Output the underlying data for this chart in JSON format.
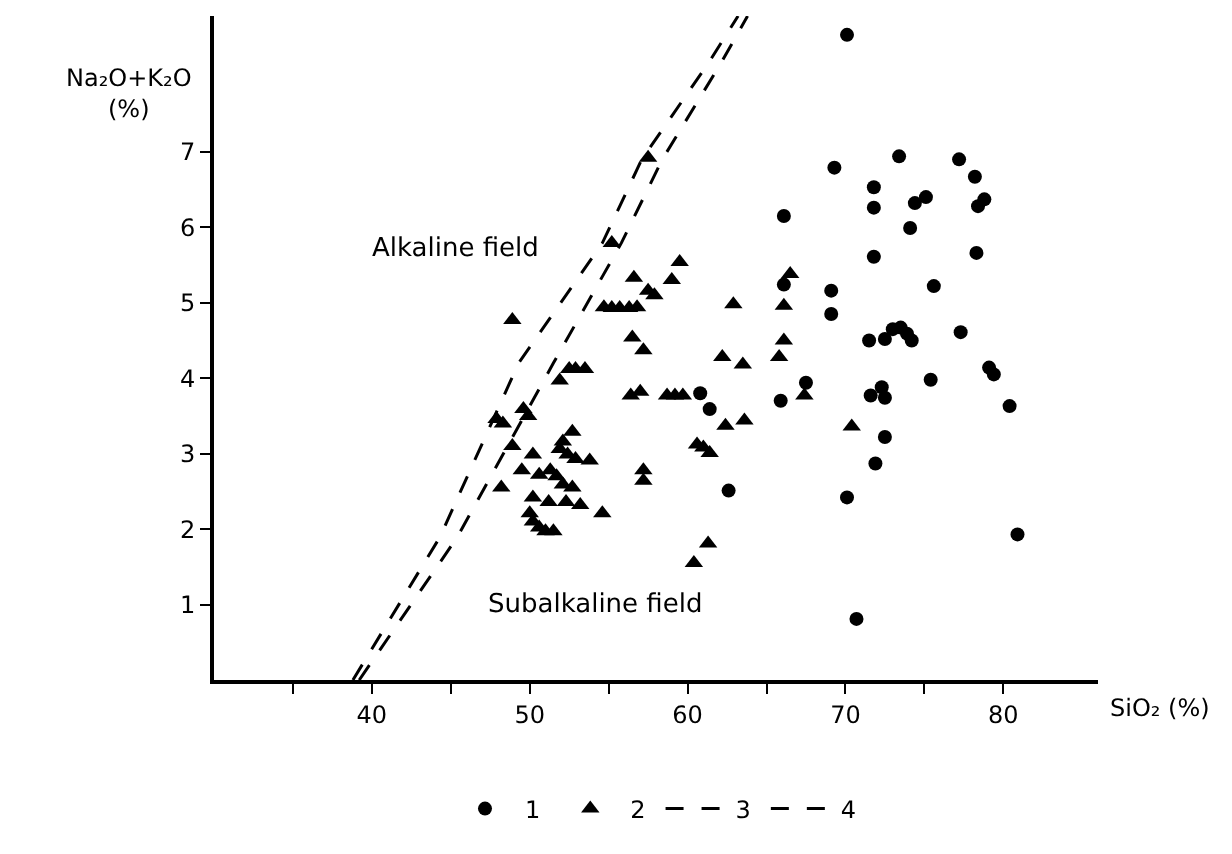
{
  "chart_data": {
    "type": "scatter",
    "xlabel": "SiO₂ (%)",
    "ylabel": "Na₂O+K₂O\n(%)",
    "xlim": [
      30,
      86
    ],
    "xticks": [
      {
        "value": 35,
        "label": null
      },
      40,
      {
        "value": 45,
        "label": null
      },
      50,
      {
        "value": 55,
        "label": null
      },
      60,
      {
        "value": 65,
        "label": null
      },
      70,
      {
        "value": 75,
        "label": null
      },
      80
    ],
    "ylim": [
      0,
      8.8
    ],
    "yticks": [
      1,
      2,
      3,
      4,
      5,
      6,
      7
    ],
    "grid": false,
    "legend": "bottom",
    "annotations": [
      "Alkaline field",
      "Subalkaline field"
    ],
    "series": [
      {
        "name": "1",
        "marker": "circle",
        "color": "#000000",
        "x": [
          70.1,
          69.3,
          73.4,
          77.2,
          78.2,
          71.8,
          71.8,
          74.4,
          75.1,
          78.4,
          78.8,
          74.1,
          66.1,
          71.8,
          78.3,
          75.6,
          69.1,
          66.1,
          69.1,
          77.3,
          71.5,
          72.5,
          73.0,
          73.5,
          73.9,
          74.2,
          79.1,
          79.4,
          67.5,
          75.4,
          72.3,
          71.6,
          72.5,
          65.9,
          80.4,
          72.5,
          71.9,
          62.6,
          70.1,
          80.9,
          70.7,
          60.8,
          61.4
        ],
        "values": [
          8.55,
          6.79,
          6.94,
          6.9,
          6.67,
          6.53,
          6.26,
          6.32,
          6.4,
          6.28,
          6.37,
          5.99,
          6.15,
          5.61,
          5.66,
          5.22,
          5.16,
          5.24,
          4.85,
          4.61,
          4.5,
          4.52,
          4.65,
          4.67,
          4.59,
          4.5,
          4.14,
          4.05,
          3.94,
          3.98,
          3.88,
          3.77,
          3.74,
          3.7,
          3.63,
          3.22,
          2.87,
          2.51,
          2.42,
          1.93,
          0.81,
          3.8,
          3.59
        ]
      },
      {
        "name": "2",
        "marker": "triangle",
        "color": "#000000",
        "x": [
          66.5,
          62.2,
          63.5,
          65.8,
          67.4,
          62.4,
          63.6,
          70.4,
          62.9,
          66.1,
          66.1,
          57.2,
          56.4,
          57.0,
          58.7,
          59.2,
          59.7,
          60.6,
          61.0,
          61.4,
          57.2,
          57.2,
          61.3,
          60.4,
          51.9,
          52.5,
          52.9,
          53.5,
          47.9,
          48.3,
          49.6,
          49.9,
          48.9,
          50.2,
          52.7,
          52.1,
          51.9,
          52.4,
          52.9,
          53.8,
          49.5,
          50.6,
          51.3,
          51.7,
          48.2,
          50.2,
          51.2,
          52.3,
          53.2,
          52.1,
          52.7,
          54.6,
          50.0,
          50.2,
          50.6,
          51.0,
          51.5,
          57.5,
          55.2,
          48.9,
          59.5,
          56.6,
          59.0,
          54.7,
          55.2,
          55.7,
          56.3,
          56.8,
          57.5,
          57.9,
          56.5
        ],
        "values": [
          5.38,
          4.28,
          4.18,
          4.28,
          3.77,
          3.37,
          3.44,
          3.36,
          4.98,
          4.96,
          4.5,
          4.37,
          3.77,
          3.82,
          3.77,
          3.77,
          3.77,
          3.12,
          3.08,
          3.01,
          2.78,
          2.64,
          1.81,
          1.55,
          3.97,
          4.12,
          4.12,
          4.12,
          3.46,
          3.4,
          3.59,
          3.5,
          3.1,
          2.99,
          3.29,
          3.16,
          3.06,
          2.99,
          2.93,
          2.91,
          2.78,
          2.72,
          2.78,
          2.7,
          2.55,
          2.42,
          2.36,
          2.36,
          2.32,
          2.59,
          2.55,
          2.21,
          2.21,
          2.1,
          2.02,
          1.97,
          1.97,
          6.92,
          5.79,
          4.77,
          5.54,
          5.33,
          5.3,
          4.94,
          4.93,
          4.93,
          4.93,
          4.94,
          5.16,
          5.1,
          4.54
        ]
      },
      {
        "name": "3",
        "type": "line",
        "line_style": "dashed",
        "color": "#000000",
        "x": [
          39.2,
          45.4,
          51.5,
          55.8,
          58.4,
          62.1,
          63.8
        ],
        "values": [
          0,
          1.89,
          4.2,
          5.79,
          6.9,
          8.17,
          8.8
        ]
      },
      {
        "name": "4",
        "type": "line",
        "line_style": "dashed",
        "color": "#000000",
        "x": [
          38.8,
          44.3,
          49.3,
          54.6,
          57.1,
          61.3,
          63.2
        ],
        "values": [
          0,
          1.89,
          4.2,
          5.79,
          6.9,
          8.17,
          8.8
        ]
      }
    ]
  }
}
